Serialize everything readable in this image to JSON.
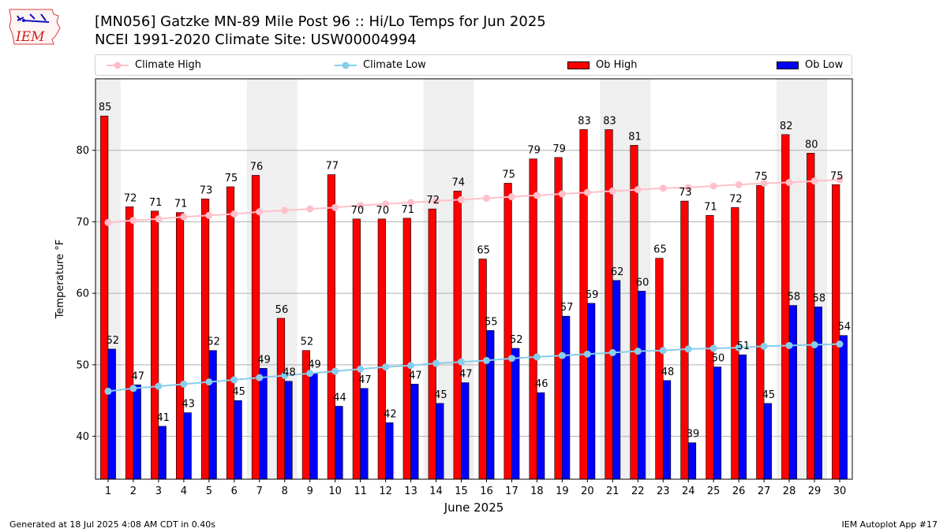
{
  "title_line1": "[MN056] Gatzke MN-89 Mile Post 96 :: Hi/Lo Temps for Jun 2025",
  "title_line2": "NCEI 1991-2020 Climate Site: USW00004994",
  "logo_text": "IEM",
  "footer_left": "Generated at 18 Jul 2025 4:08 AM CDT in 0.40s",
  "footer_right": "IEM Autoplot App #17",
  "colors": {
    "ob_high": "#ff0000",
    "ob_low": "#0000ff",
    "climate_high": "#ffc0cb",
    "climate_low": "#87ceeb",
    "weekend_band": "#efefef",
    "grid": "#b0b0b0"
  },
  "chart_data": {
    "type": "bar",
    "xlabel": "June 2025",
    "ylabel": "Temperature °F",
    "ylim": [
      34,
      90
    ],
    "yticks": [
      40,
      50,
      60,
      70,
      80
    ],
    "grid": true,
    "legend_placement": "top",
    "categories": [
      "1",
      "2",
      "3",
      "4",
      "5",
      "6",
      "7",
      "8",
      "9",
      "10",
      "11",
      "12",
      "13",
      "14",
      "15",
      "16",
      "17",
      "18",
      "19",
      "20",
      "21",
      "22",
      "23",
      "24",
      "25",
      "26",
      "27",
      "28",
      "29",
      "30"
    ],
    "shaded_days": [
      1,
      7,
      8,
      14,
      15,
      21,
      22,
      28,
      29
    ],
    "series": [
      {
        "name": "Ob High",
        "kind": "bar",
        "values": [
          85,
          72,
          71,
          71,
          73,
          75,
          76,
          56,
          52,
          77,
          70,
          70,
          71,
          72,
          74,
          65,
          75,
          79,
          79,
          83,
          83,
          81,
          65,
          73,
          71,
          72,
          75,
          82,
          80,
          75
        ],
        "plotted": [
          84.8,
          72.1,
          71.5,
          71.3,
          73.2,
          74.9,
          76.5,
          56.5,
          52.0,
          76.6,
          70.4,
          70.4,
          70.5,
          71.8,
          74.3,
          64.8,
          75.4,
          78.8,
          79.0,
          82.9,
          82.9,
          80.7,
          64.9,
          72.9,
          70.9,
          72.0,
          75.1,
          82.2,
          79.6,
          75.2
        ]
      },
      {
        "name": "Ob Low",
        "kind": "bar",
        "values": [
          52,
          47,
          41,
          43,
          52,
          45,
          49,
          48,
          49,
          44,
          47,
          42,
          47,
          45,
          47,
          55,
          52,
          46,
          57,
          59,
          62,
          60,
          48,
          39,
          50,
          51,
          45,
          58,
          58,
          54
        ],
        "plotted": [
          52.2,
          47.2,
          41.4,
          43.3,
          52.0,
          45.0,
          49.5,
          47.7,
          48.8,
          44.2,
          46.7,
          41.9,
          47.3,
          44.6,
          47.5,
          54.8,
          52.3,
          46.1,
          56.8,
          58.6,
          61.8,
          60.3,
          47.8,
          39.1,
          49.7,
          51.4,
          44.6,
          58.3,
          58.1,
          54.1
        ]
      },
      {
        "name": "Climate High",
        "kind": "line",
        "values": [
          69.9,
          70.2,
          70.4,
          70.7,
          70.9,
          71.1,
          71.4,
          71.6,
          71.8,
          72.0,
          72.3,
          72.5,
          72.7,
          72.9,
          73.1,
          73.3,
          73.5,
          73.7,
          73.9,
          74.1,
          74.3,
          74.5,
          74.7,
          74.8,
          75.0,
          75.2,
          75.4,
          75.5,
          75.7,
          75.9
        ]
      },
      {
        "name": "Climate Low",
        "kind": "line",
        "values": [
          46.3,
          46.7,
          47.0,
          47.3,
          47.6,
          47.9,
          48.2,
          48.5,
          48.8,
          49.1,
          49.4,
          49.7,
          49.9,
          50.2,
          50.4,
          50.6,
          50.9,
          51.1,
          51.3,
          51.5,
          51.7,
          51.9,
          52.0,
          52.2,
          52.3,
          52.4,
          52.6,
          52.7,
          52.8,
          52.9
        ]
      }
    ]
  }
}
